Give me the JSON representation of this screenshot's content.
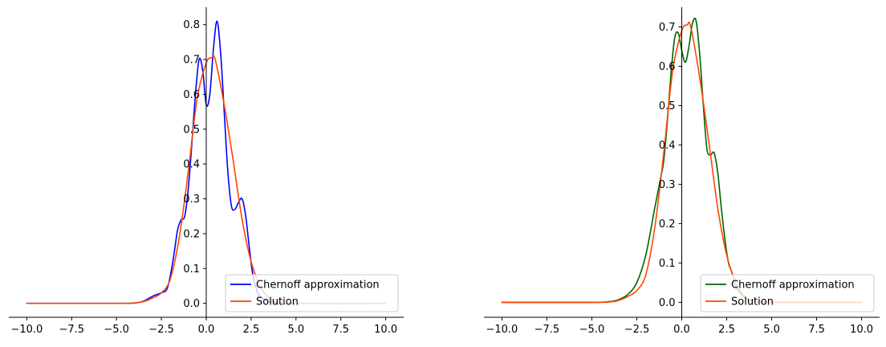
{
  "chart_data": [
    {
      "type": "line",
      "title": "",
      "xlabel": "",
      "ylabel": "",
      "xlim": [
        -11,
        11
      ],
      "ylim": [
        -0.04,
        0.85
      ],
      "xticks": [
        -10,
        -7.5,
        -5,
        -2.5,
        0,
        2.5,
        5,
        7.5,
        10
      ],
      "xtick_labels": [
        "−10.0",
        "−7.5",
        "−5.0",
        "−2.5",
        "0.0",
        "2.5",
        "5.0",
        "7.5",
        "10.0"
      ],
      "yticks": [
        0,
        0.1,
        0.2,
        0.3,
        0.4,
        0.5,
        0.6,
        0.7,
        0.8
      ],
      "ytick_labels": [
        "0.0",
        "0.1",
        "0.2",
        "0.3",
        "0.4",
        "0.5",
        "0.6",
        "0.7",
        "0.8"
      ],
      "legend": "lower-right",
      "series": [
        {
          "name": "Chernoff approximation",
          "color": "#0000ff",
          "x": [
            -10,
            -5,
            -4,
            -3.5,
            -3,
            -2.5,
            -2.2,
            -2,
            -1.8,
            -1.6,
            -1.4,
            -1.2,
            -1,
            -0.8,
            -0.6,
            -0.4,
            -0.2,
            0,
            0.2,
            0.4,
            0.6,
            0.8,
            1,
            1.2,
            1.4,
            1.6,
            1.8,
            2,
            2.2,
            2.4,
            2.6,
            2.8,
            3,
            3.5,
            4,
            5,
            10
          ],
          "y": [
            0,
            0,
            0.001,
            0.006,
            0.02,
            0.03,
            0.04,
            0.08,
            0.14,
            0.21,
            0.24,
            0.25,
            0.33,
            0.46,
            0.6,
            0.7,
            0.67,
            0.57,
            0.6,
            0.73,
            0.81,
            0.72,
            0.55,
            0.38,
            0.28,
            0.27,
            0.29,
            0.3,
            0.25,
            0.16,
            0.08,
            0.04,
            0.02,
            0.005,
            0.001,
            0,
            0
          ]
        },
        {
          "name": "Solution",
          "color": "#ff4500",
          "x": [
            -10,
            -5,
            -4,
            -3.5,
            -3,
            -2.5,
            -2,
            -1.5,
            -1,
            -0.5,
            0,
            0.3,
            0.5,
            1,
            1.5,
            2,
            2.5,
            3,
            3.5,
            4,
            5,
            10
          ],
          "y": [
            0,
            0,
            0.001,
            0.005,
            0.015,
            0.03,
            0.07,
            0.19,
            0.38,
            0.59,
            0.69,
            0.705,
            0.7,
            0.57,
            0.41,
            0.24,
            0.12,
            0.05,
            0.015,
            0.004,
            0,
            0
          ]
        }
      ]
    },
    {
      "type": "line",
      "title": "",
      "xlabel": "",
      "ylabel": "",
      "xlim": [
        -11,
        11
      ],
      "ylim": [
        -0.038,
        0.75
      ],
      "xticks": [
        -10,
        -7.5,
        -5,
        -2.5,
        0,
        2.5,
        5,
        7.5,
        10
      ],
      "xtick_labels": [
        "−10.0",
        "−7.5",
        "−5.0",
        "−2.5",
        "0.0",
        "2.5",
        "5.0",
        "7.5",
        "10.0"
      ],
      "yticks": [
        0,
        0.1,
        0.2,
        0.3,
        0.4,
        0.5,
        0.6,
        0.7
      ],
      "ytick_labels": [
        "0.0",
        "0.1",
        "0.2",
        "0.3",
        "0.4",
        "0.5",
        "0.6",
        "0.7"
      ],
      "legend": "lower-right",
      "series": [
        {
          "name": "Chernoff approximation",
          "color": "#006400",
          "x": [
            -10,
            -5,
            -4,
            -3.5,
            -3,
            -2.5,
            -2,
            -1.5,
            -1.2,
            -1,
            -0.8,
            -0.6,
            -0.4,
            -0.2,
            0,
            0.2,
            0.4,
            0.6,
            0.8,
            1,
            1.2,
            1.4,
            1.6,
            1.8,
            2,
            2.2,
            2.4,
            2.6,
            2.8,
            3,
            3.5,
            4,
            5,
            10
          ],
          "y": [
            0,
            0,
            0.002,
            0.007,
            0.02,
            0.05,
            0.12,
            0.24,
            0.31,
            0.36,
            0.46,
            0.58,
            0.67,
            0.685,
            0.64,
            0.61,
            0.65,
            0.71,
            0.715,
            0.63,
            0.5,
            0.39,
            0.375,
            0.38,
            0.33,
            0.24,
            0.16,
            0.1,
            0.075,
            0.04,
            0.012,
            0.003,
            0,
            0
          ]
        },
        {
          "name": "Solution",
          "color": "#ff4500",
          "x": [
            -10,
            -5,
            -4,
            -3.5,
            -3,
            -2.5,
            -2,
            -1.5,
            -1,
            -0.5,
            0,
            0.3,
            0.5,
            1,
            1.5,
            2,
            2.5,
            3,
            3.5,
            4,
            5,
            10
          ],
          "y": [
            0,
            0,
            0.001,
            0.005,
            0.015,
            0.03,
            0.07,
            0.19,
            0.38,
            0.59,
            0.69,
            0.705,
            0.7,
            0.57,
            0.41,
            0.24,
            0.12,
            0.05,
            0.015,
            0.004,
            0,
            0
          ]
        }
      ]
    }
  ]
}
